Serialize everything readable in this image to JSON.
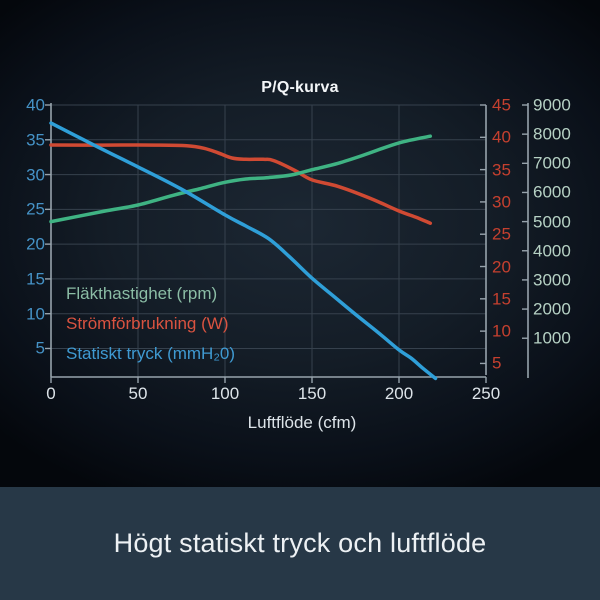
{
  "chart_data": {
    "type": "line",
    "title": "P/Q-kurva",
    "xlabel": "Luftflöde (cfm)",
    "grid": true,
    "x_axis": {
      "min": 0,
      "max": 250,
      "ticks": [
        0,
        50,
        100,
        150,
        200,
        250
      ]
    },
    "y_axes": {
      "pressure": {
        "side": "left",
        "top": 40,
        "bottom": 0.9,
        "ticks": [
          40,
          35,
          30,
          25,
          20,
          15,
          10,
          5
        ],
        "tick_color": "#4592c6"
      },
      "power": {
        "side": "right",
        "top": 45,
        "bottom": 2.9,
        "ticks": [
          45,
          40,
          35,
          30,
          25,
          20,
          15,
          10,
          5
        ],
        "tick_color": "#c5402f"
      },
      "rpm": {
        "side": "right-outer",
        "top": 9000,
        "bottom": -330,
        "ticks": [
          9000,
          8000,
          7000,
          6000,
          5000,
          4000,
          3000,
          2000,
          1000
        ],
        "tick_color": "#b6d1c4"
      }
    },
    "series": [
      {
        "name": "fan-speed",
        "legend": "Fläkthastighet (rpm)",
        "axis": "rpm",
        "color": "#3fb383",
        "legend_color": "#8bbda5",
        "points": [
          [
            0,
            5000
          ],
          [
            30,
            5350
          ],
          [
            50,
            5570
          ],
          [
            70,
            5900
          ],
          [
            85,
            6120
          ],
          [
            100,
            6350
          ],
          [
            112,
            6460
          ],
          [
            125,
            6510
          ],
          [
            138,
            6600
          ],
          [
            150,
            6780
          ],
          [
            165,
            7000
          ],
          [
            180,
            7290
          ],
          [
            200,
            7700
          ],
          [
            218,
            7930
          ]
        ]
      },
      {
        "name": "power",
        "legend": "Strömförbrukning (W)",
        "axis": "power",
        "color": "#d04a33",
        "legend_color": "#da5340",
        "points": [
          [
            0,
            38.8
          ],
          [
            30,
            38.8
          ],
          [
            60,
            38.8
          ],
          [
            78,
            38.7
          ],
          [
            88,
            38.3
          ],
          [
            96,
            37.6
          ],
          [
            104,
            36.8
          ],
          [
            112,
            36.6
          ],
          [
            122,
            36.6
          ],
          [
            128,
            36.4
          ],
          [
            140,
            34.9
          ],
          [
            150,
            33.4
          ],
          [
            165,
            32.4
          ],
          [
            183,
            30.6
          ],
          [
            200,
            28.6
          ],
          [
            210,
            27.6
          ],
          [
            218,
            26.7
          ]
        ]
      },
      {
        "name": "static-pressure",
        "legend": "Statiskt tryck (mmH₂0)",
        "axis": "pressure",
        "color": "#2f9fd8",
        "legend_color": "#3f9ad2",
        "points": [
          [
            0,
            37.4
          ],
          [
            25,
            34.2
          ],
          [
            50,
            31.1
          ],
          [
            75,
            27.9
          ],
          [
            100,
            24.2
          ],
          [
            112,
            22.6
          ],
          [
            125,
            20.8
          ],
          [
            137,
            18.2
          ],
          [
            150,
            15.1
          ],
          [
            162,
            12.6
          ],
          [
            175,
            9.9
          ],
          [
            188,
            7.3
          ],
          [
            200,
            4.8
          ],
          [
            207,
            3.6
          ],
          [
            214,
            2.1
          ],
          [
            221,
            0.7
          ]
        ]
      }
    ]
  },
  "theme": {
    "grid_color": "#36414d",
    "axis_color": "#97a3ac",
    "x_tick_label_color": "#dde4e9",
    "banner_bg": "#273847",
    "banner_text_color": "#edf1f4"
  },
  "caption": {
    "text": "Högt statiskt tryck och luftflöde"
  }
}
